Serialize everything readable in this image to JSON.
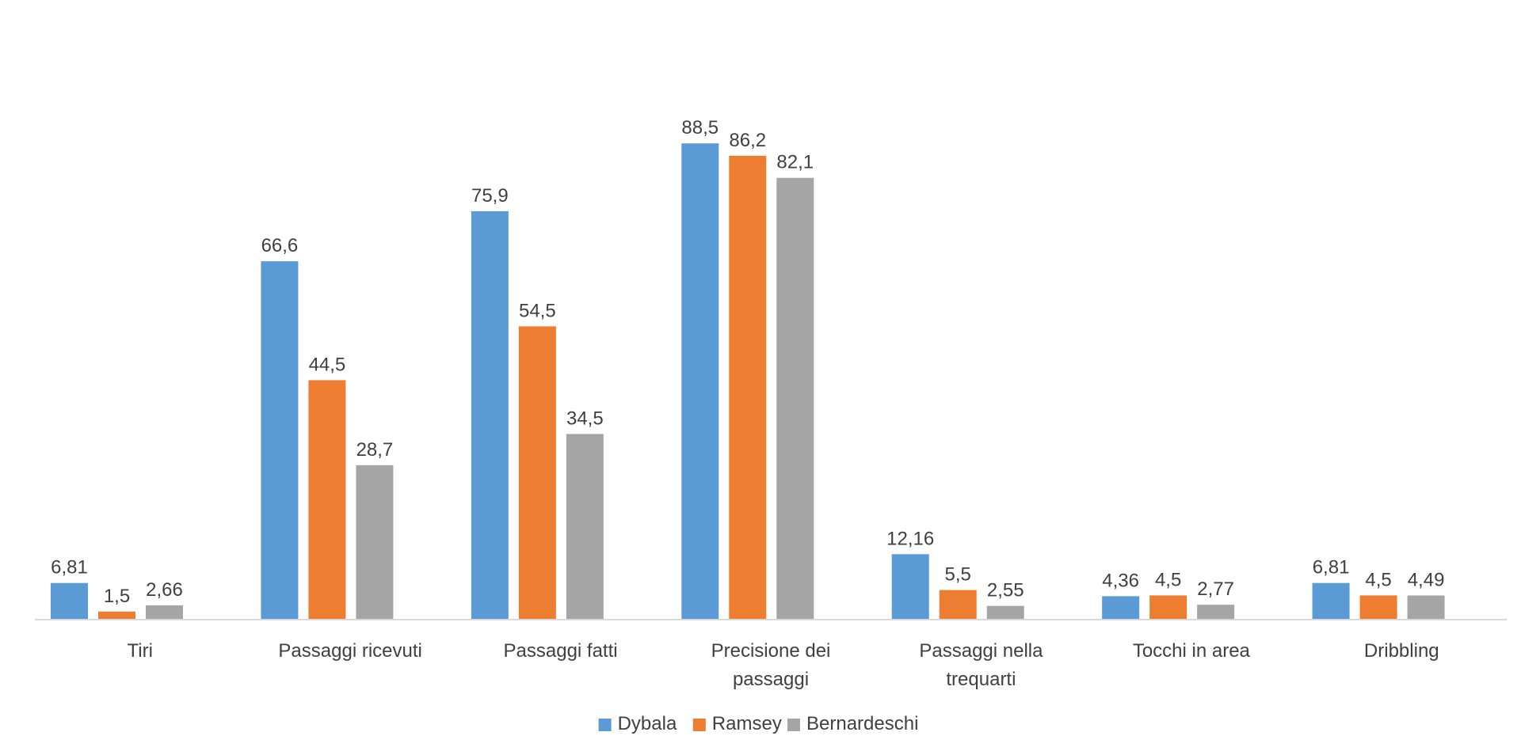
{
  "chart_data": {
    "type": "bar",
    "categories": [
      "Tiri",
      "Passaggi ricevuti",
      "Passaggi fatti",
      "Precisione dei passaggi",
      "Passaggi nella trequarti",
      "Tocchi in area",
      "Dribbling"
    ],
    "series": [
      {
        "name": "Dybala",
        "color": "#5b9bd5",
        "values": [
          6.81,
          66.6,
          75.9,
          88.5,
          12.16,
          4.36,
          6.81
        ],
        "labels": [
          "6,81",
          "66,6",
          "75,9",
          "88,5",
          "12,16",
          "4,36",
          "6,81"
        ]
      },
      {
        "name": "Ramsey",
        "color": "#ed7d31",
        "values": [
          1.5,
          44.5,
          54.5,
          86.2,
          5.5,
          4.5,
          4.5
        ],
        "labels": [
          "1,5",
          "44,5",
          "54,5",
          "86,2",
          "5,5",
          "4,5",
          "4,5"
        ]
      },
      {
        "name": "Bernardeschi",
        "color": "#a5a5a5",
        "values": [
          2.66,
          28.7,
          34.5,
          82.1,
          2.55,
          2.77,
          4.49
        ],
        "labels": [
          "2,66",
          "28,7",
          "34,5",
          "82,1",
          "2,55",
          "2,77",
          "4,49"
        ]
      }
    ],
    "ylim": [
      0,
      100
    ],
    "grid": false,
    "legend_position": "bottom"
  }
}
